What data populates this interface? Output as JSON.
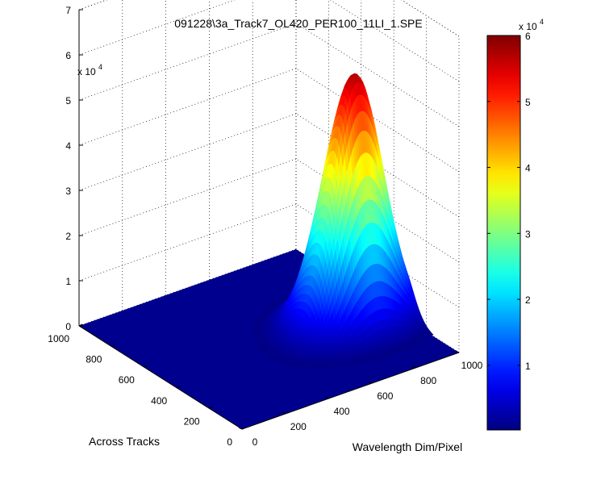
{
  "chart_data": {
    "type": "surface",
    "title": "091228\\3a_Track7_OL420_PER100_11LI_1.SPE",
    "xlabel": "Wavelength Dim/Pixel",
    "ylabel": "Across Tracks",
    "zlabel": "",
    "xlim": [
      0,
      1000
    ],
    "ylim": [
      0,
      1000
    ],
    "zlim": [
      0,
      70000
    ],
    "x_ticks": [
      "0",
      "200",
      "400",
      "600",
      "800",
      "1000"
    ],
    "y_ticks": [
      "0",
      "200",
      "400",
      "600",
      "800",
      "1000"
    ],
    "z_ticks": [
      "0",
      "1",
      "2",
      "3",
      "4",
      "5",
      "6",
      "7"
    ],
    "z_exponent": "x 10",
    "z_exponent_power": "4",
    "grid": true,
    "colormap": "jet",
    "colorbar": {
      "range": [
        200,
        60000
      ],
      "ticks": [
        "1",
        "2",
        "3",
        "4",
        "5",
        "6"
      ],
      "exponent": "x 10",
      "exponent_power": "4"
    },
    "surface": {
      "baseline": 0,
      "peak_value": 57000,
      "peak_x": 790,
      "peak_y": 360,
      "gaussian_sigma_x": 120,
      "gaussian_sigma_y_left": 75,
      "gaussian_sigma_y_right": 115,
      "x_range": [
        0,
        1000
      ],
      "y_range": [
        0,
        1000
      ]
    }
  },
  "colors": {
    "background": "#ffffff",
    "floor": "#00008f",
    "axis": "#000000",
    "grid": "#000000"
  }
}
